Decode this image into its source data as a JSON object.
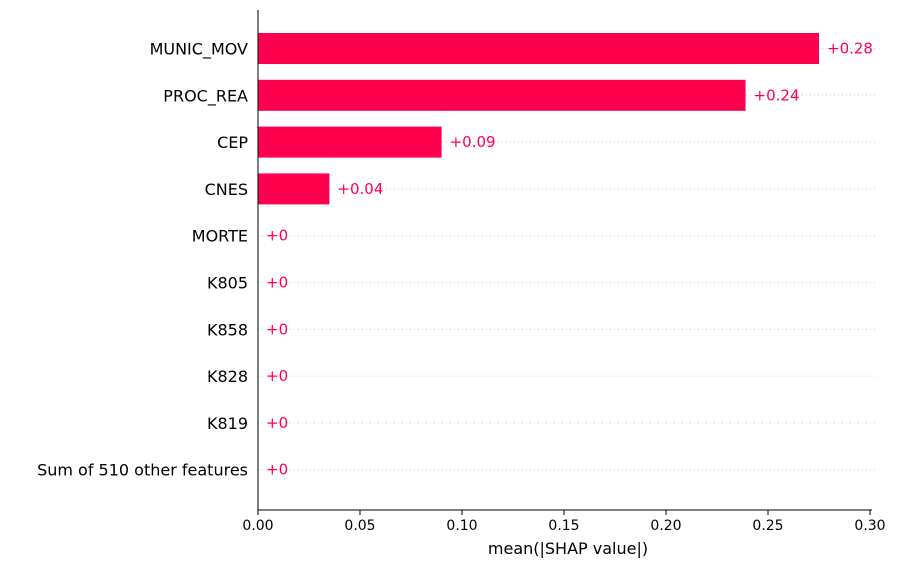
{
  "chart_data": {
    "type": "bar",
    "orientation": "horizontal",
    "categories": [
      "MUNIC_MOV",
      "PROC_REA",
      "CEP",
      "CNES",
      "MORTE",
      "K805",
      "K858",
      "K828",
      "K819",
      "Sum of 510 other features"
    ],
    "values": [
      0.275,
      0.239,
      0.09,
      0.035,
      0,
      0,
      0,
      0,
      0,
      0
    ],
    "value_labels": [
      "+0.28",
      "+0.24",
      "+0.09",
      "+0.04",
      "+0",
      "+0",
      "+0",
      "+0",
      "+0",
      "+0"
    ],
    "xlabel": "mean(|SHAP value|)",
    "ylabel": "",
    "xlim": [
      0,
      0.305
    ],
    "xticks": [
      0,
      0.05,
      0.1,
      0.15,
      0.2,
      0.25,
      0.3
    ],
    "xtick_labels": [
      "0.00",
      "0.05",
      "0.10",
      "0.15",
      "0.20",
      "0.25",
      "0.30"
    ],
    "grid": "dotted horizontal guide per row",
    "bar_color": "#ff0051",
    "label_color": "#ff0051",
    "guide_color": "#cccccc"
  }
}
